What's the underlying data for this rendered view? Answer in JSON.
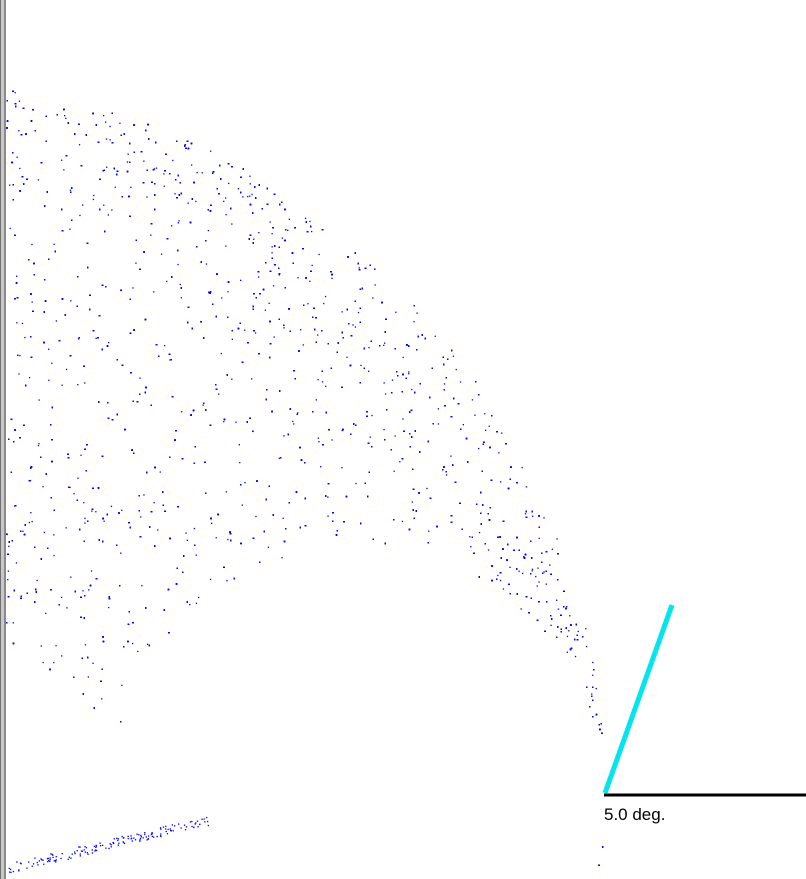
{
  "scale_bar": {
    "label": "5.0 deg.",
    "color": "#000000"
  },
  "colors": {
    "points": "#0000ff",
    "direction_line": "#00e5ee",
    "background": "#ffffff",
    "window_border": "#8a8a8a"
  },
  "point_cloud": {
    "shape": "crescent",
    "approx_point_count": 9000
  }
}
